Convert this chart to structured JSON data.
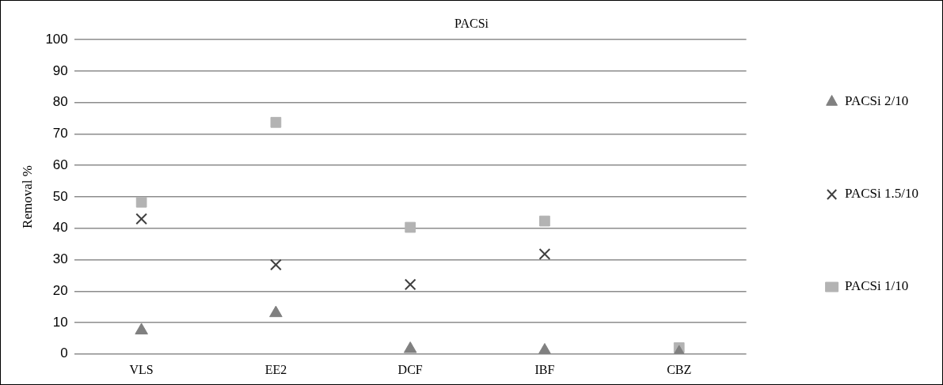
{
  "chart_data": {
    "type": "scatter",
    "title": "PACSi",
    "ylabel": "Removal %",
    "categories": [
      "VLS",
      "EE2",
      "DCF",
      "IBF",
      "CBZ"
    ],
    "series": [
      {
        "name": "PACSi 2/10",
        "color": "#808080",
        "marker": "triangle",
        "values": [
          7.5,
          13,
          1.6,
          1.1,
          0.5
        ]
      },
      {
        "name": "PACSi 1.5/10",
        "color": "#404040",
        "marker": "cross",
        "values": [
          43,
          28.4,
          22.1,
          31.8,
          null
        ]
      },
      {
        "name": "PACSi 1/10",
        "color": "#b3b3b3",
        "marker": "square",
        "values": [
          48.3,
          73.7,
          40.3,
          42.3,
          2
        ]
      }
    ],
    "ylim": [
      0,
      100
    ],
    "yticks": [
      0,
      10,
      20,
      30,
      40,
      50,
      60,
      70,
      80,
      90,
      100
    ],
    "grid": "y",
    "legend": "right"
  }
}
